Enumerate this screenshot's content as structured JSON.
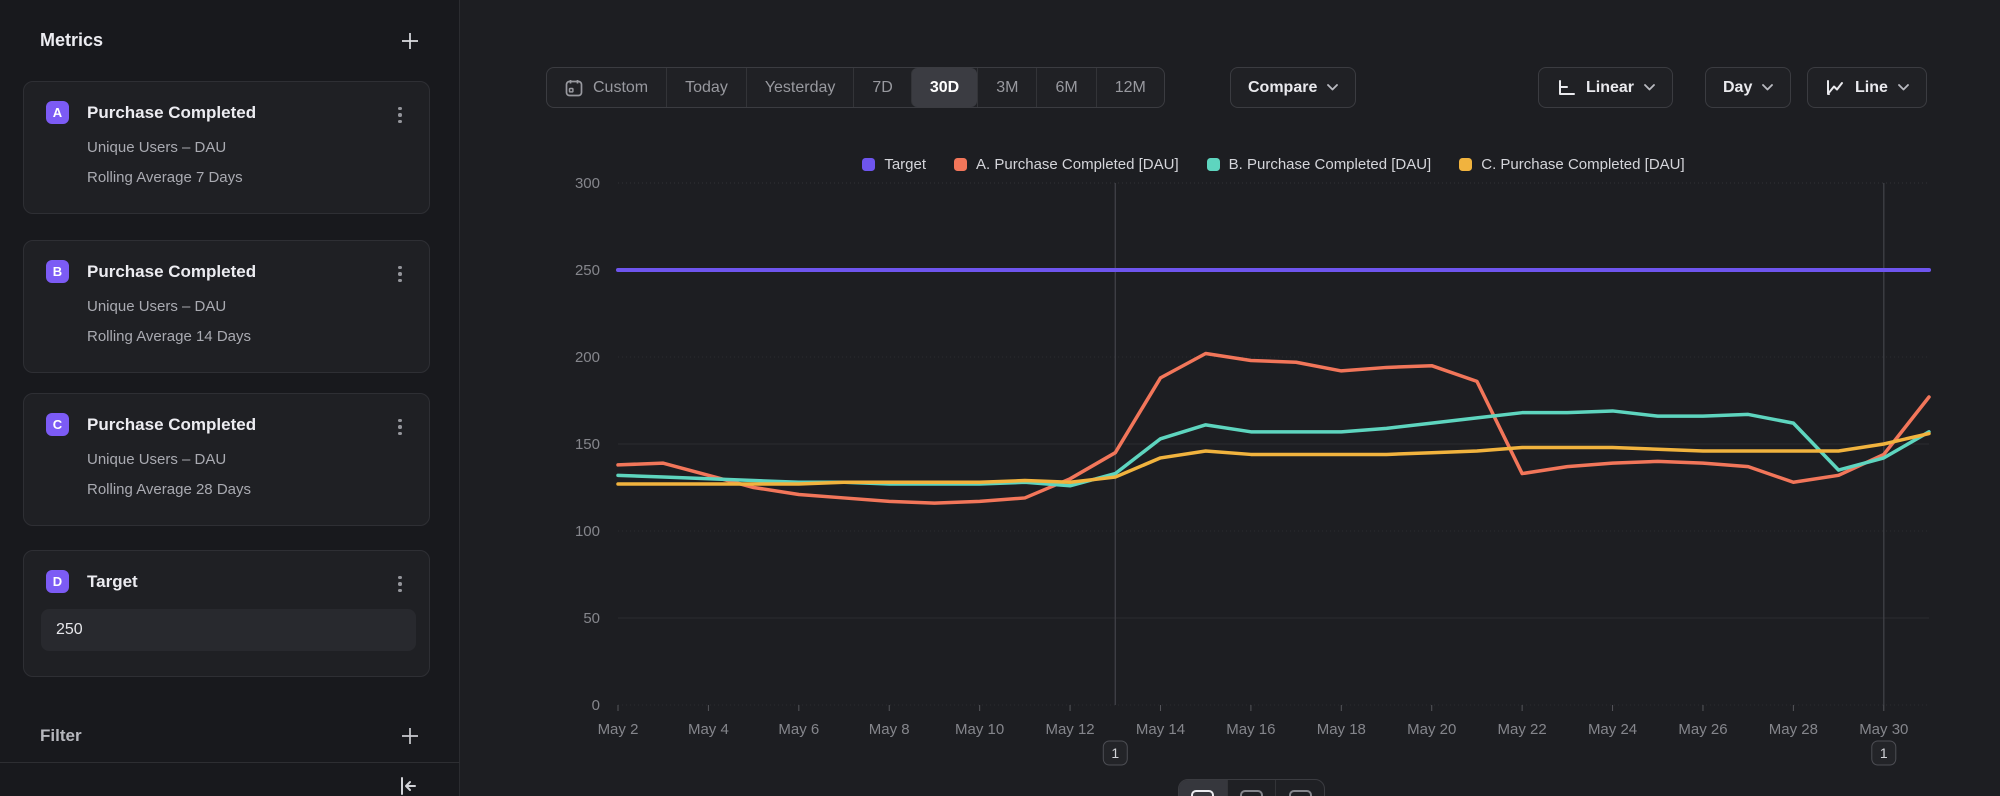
{
  "sidebar": {
    "title": "Metrics",
    "metrics": [
      {
        "badge": "A",
        "title": "Purchase Completed",
        "line1": "Unique Users – DAU",
        "line2": "Rolling Average 7 Days"
      },
      {
        "badge": "B",
        "title": "Purchase Completed",
        "line1": "Unique Users – DAU",
        "line2": "Rolling Average 14 Days"
      },
      {
        "badge": "C",
        "title": "Purchase Completed",
        "line1": "Unique Users – DAU",
        "line2": "Rolling Average 28 Days"
      }
    ],
    "target": {
      "badge": "D",
      "title": "Target",
      "value": "250"
    },
    "filter": {
      "label": "Filter"
    }
  },
  "toolbar": {
    "ranges": [
      "Custom",
      "Today",
      "Yesterday",
      "7D",
      "30D",
      "3M",
      "6M",
      "12M"
    ],
    "selected_range": "30D",
    "compare_label": "Compare",
    "scale_label": "Linear",
    "interval_label": "Day",
    "chart_type_label": "Line"
  },
  "icons": {
    "add": "plus-icon",
    "kebab": "kebab-menu-icon",
    "calendar": "calendar-icon",
    "chevron_down": "chevron-down-icon",
    "axis": "axis-scale-icon",
    "line_chart": "line-chart-icon",
    "collapse": "collapse-sidebar-icon"
  },
  "colors": {
    "accent_purple": "#7c5bf5",
    "target_line": "#6e55ee",
    "series_a": "#f2765a",
    "series_b": "#5ed5bf",
    "series_c": "#f1b33e"
  },
  "chart_data": {
    "type": "line",
    "title": "",
    "xlabel": "",
    "ylabel": "",
    "ylim": [
      0,
      300
    ],
    "yticks": [
      0,
      50,
      100,
      150,
      200,
      250,
      300
    ],
    "grid": true,
    "legend_position": "top",
    "x": [
      "May 2",
      "May 3",
      "May 4",
      "May 5",
      "May 6",
      "May 7",
      "May 8",
      "May 9",
      "May 10",
      "May 11",
      "May 12",
      "May 13",
      "May 14",
      "May 15",
      "May 16",
      "May 17",
      "May 18",
      "May 19",
      "May 20",
      "May 21",
      "May 22",
      "May 23",
      "May 24",
      "May 25",
      "May 26",
      "May 27",
      "May 28",
      "May 29",
      "May 30",
      "May 31"
    ],
    "x_label_step": 2,
    "series": [
      {
        "name": "Target",
        "color": "#6e55ee",
        "values": [
          250,
          250,
          250,
          250,
          250,
          250,
          250,
          250,
          250,
          250,
          250,
          250,
          250,
          250,
          250,
          250,
          250,
          250,
          250,
          250,
          250,
          250,
          250,
          250,
          250,
          250,
          250,
          250,
          250,
          250
        ]
      },
      {
        "name": "A. Purchase Completed [DAU]",
        "color": "#f2765a",
        "values": [
          138,
          139,
          132,
          125,
          121,
          119,
          117,
          116,
          117,
          119,
          130,
          145,
          188,
          202,
          198,
          197,
          192,
          194,
          195,
          186,
          133,
          137,
          139,
          140,
          139,
          137,
          128,
          132,
          144,
          177
        ]
      },
      {
        "name": "B. Purchase Completed [DAU]",
        "color": "#5ed5bf",
        "values": [
          132,
          131,
          130,
          129,
          128,
          128,
          127,
          127,
          127,
          128,
          126,
          133,
          153,
          161,
          157,
          157,
          157,
          159,
          162,
          165,
          168,
          168,
          169,
          166,
          166,
          167,
          162,
          135,
          142,
          157
        ]
      },
      {
        "name": "C. Purchase Completed [DAU]",
        "color": "#f1b33e",
        "values": [
          127,
          127,
          127,
          127,
          127,
          128,
          128,
          128,
          128,
          129,
          128,
          131,
          142,
          146,
          144,
          144,
          144,
          144,
          145,
          146,
          148,
          148,
          148,
          147,
          146,
          146,
          146,
          146,
          150,
          156
        ]
      }
    ],
    "annotations": [
      {
        "x_index": 11,
        "label": "1"
      },
      {
        "x_index": 28,
        "label": "1"
      }
    ]
  }
}
